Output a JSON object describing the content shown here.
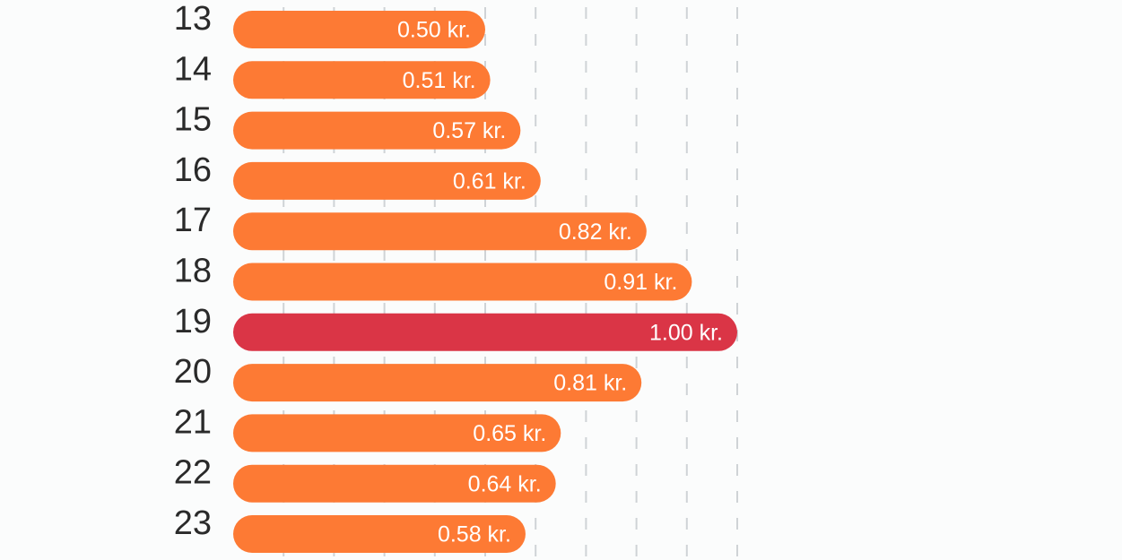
{
  "chart_data": {
    "type": "bar",
    "orientation": "horizontal",
    "categories": [
      "13",
      "14",
      "15",
      "16",
      "17",
      "18",
      "19",
      "20",
      "21",
      "22",
      "23"
    ],
    "values": [
      0.5,
      0.51,
      0.57,
      0.61,
      0.82,
      0.91,
      1.0,
      0.81,
      0.65,
      0.64,
      0.58
    ],
    "value_labels": [
      "0.50 kr.",
      "0.51 kr.",
      "0.57 kr.",
      "0.61 kr.",
      "0.82 kr.",
      "0.91 kr.",
      "1.00 kr.",
      "0.81 kr.",
      "0.65 kr.",
      "0.64 kr.",
      "0.58 kr."
    ],
    "highlight_category": "19",
    "xlim": [
      0,
      1.0
    ],
    "grid": true,
    "colors": {
      "bar": "#fd7a34",
      "highlight": "#da3546",
      "grid": "#cfd3d6",
      "category_text": "#2a2a2a",
      "value_text": "#ffffff",
      "background": "#fbfcfc"
    }
  }
}
